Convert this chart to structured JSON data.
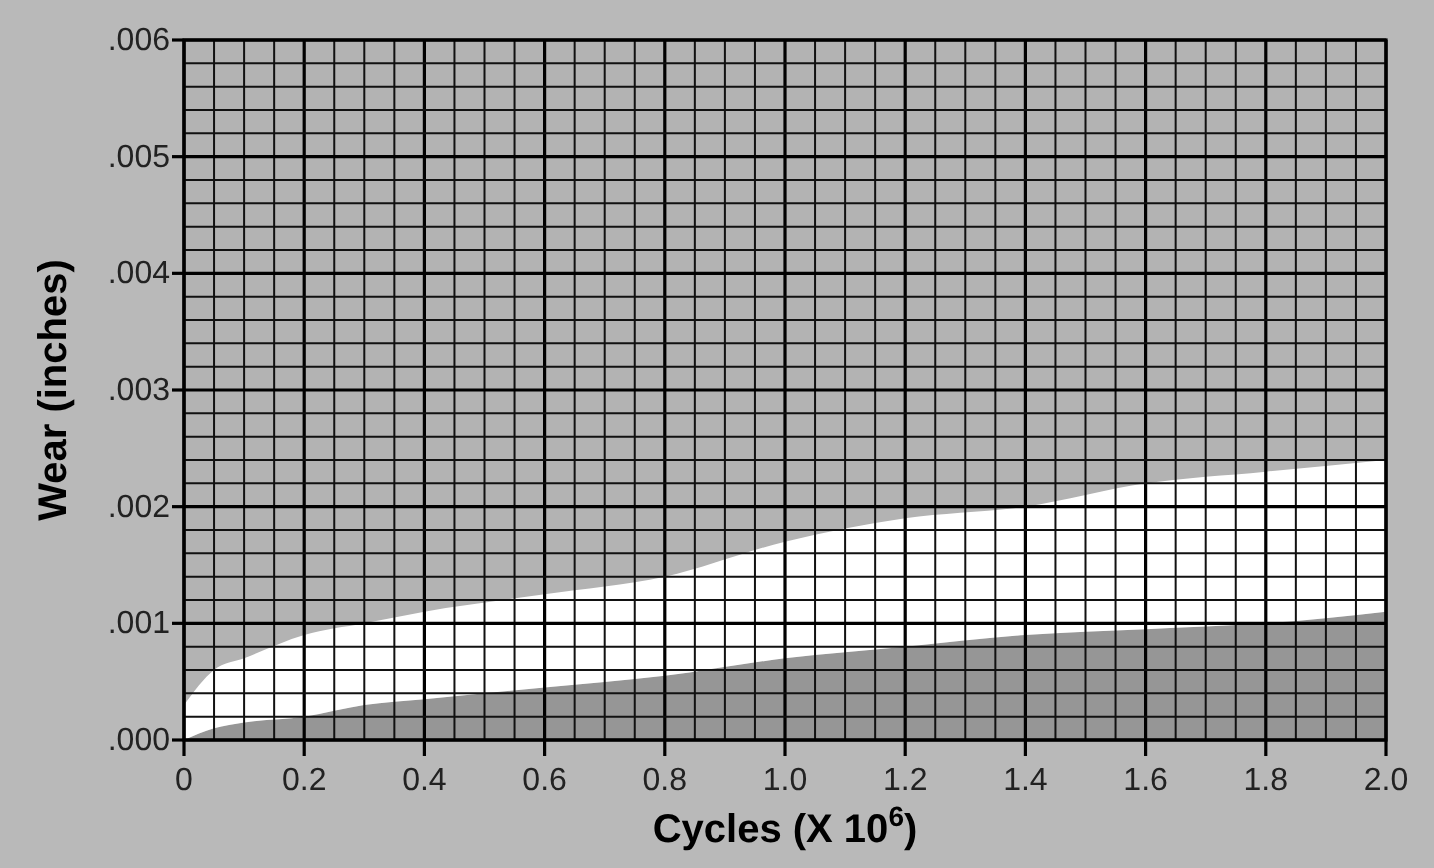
{
  "chart_data": {
    "type": "area",
    "xlabel": "Cycles (X 10$^{6}$)",
    "ylabel": "Wear (inches)",
    "x": [
      0,
      0.05,
      0.1,
      0.2,
      0.3,
      0.4,
      0.6,
      0.8,
      1.0,
      1.2,
      1.4,
      1.6,
      1.8,
      2.0
    ],
    "stacked": true,
    "series": [
      {
        "color": "#969696",
        "values": [
          0,
          0.0001,
          0.00015,
          0.0002,
          0.0003,
          0.00035,
          0.00045,
          0.00055,
          0.0007,
          0.0008,
          0.0009,
          0.00095,
          0.001,
          0.0011
        ]
      },
      {
        "color": "#ffffff",
        "values": [
          0.0003,
          0.0005,
          0.00055,
          0.0007,
          0.0007,
          0.00075,
          0.0008,
          0.00085,
          0.001,
          0.0011,
          0.0011,
          0.00125,
          0.0013,
          0.0013
        ]
      }
    ],
    "xlim": [
      0,
      2
    ],
    "ylim": [
      0,
      0.006
    ],
    "xticks": [
      {
        "value": 0,
        "label": "0"
      },
      {
        "value": 0.2,
        "label": "0.2"
      },
      {
        "value": 0.4,
        "label": "0.4"
      },
      {
        "value": 0.6,
        "label": "0.6"
      },
      {
        "value": 0.8,
        "label": "0.8"
      },
      {
        "value": 1,
        "label": "1.0"
      },
      {
        "value": 1.2,
        "label": "1.2"
      },
      {
        "value": 1.4,
        "label": "1.4"
      },
      {
        "value": 1.6,
        "label": "1.6"
      },
      {
        "value": 1.8,
        "label": "1.8"
      },
      {
        "value": 2,
        "label": "2.0"
      }
    ],
    "yticks": [
      {
        "value": 0,
        "label": ".000"
      },
      {
        "value": 0.001,
        "label": ".001"
      },
      {
        "value": 0.002,
        "label": ".002"
      },
      {
        "value": 0.003,
        "label": ".003"
      },
      {
        "value": 0.004,
        "label": ".004"
      },
      {
        "value": 0.005,
        "label": ".005"
      },
      {
        "value": 0.006,
        "label": ".006"
      }
    ],
    "grid": true
  }
}
